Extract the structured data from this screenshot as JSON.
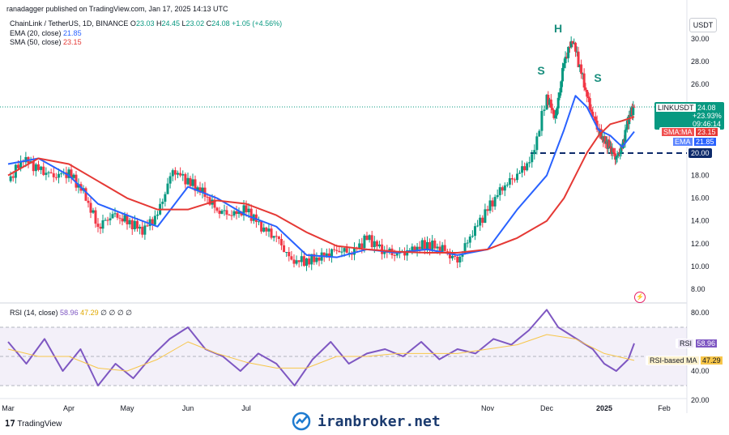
{
  "header": {
    "publisher": "ranadagger published on TradingView.com, Jan 17, 2025 14:13 UTC"
  },
  "instrument": {
    "title": "ChainLink / TetherUS, 1D, BINANCE",
    "open_label": "O",
    "open": "23.03",
    "high_label": "H",
    "high": "24.45",
    "low_label": "L",
    "low": "23.02",
    "close_label": "C",
    "close": "24.08",
    "change": "+1.05 (+4.56%)"
  },
  "indicators": {
    "ema": {
      "label": "EMA (20, close)",
      "value": "21.85",
      "color": "#2962ff"
    },
    "sma": {
      "label": "SMA (50, close)",
      "value": "23.15",
      "color": "#e53935"
    }
  },
  "rsi_legend": {
    "label": "RSI (14, close)",
    "rsi_value": "58.96",
    "ma_value": "47.29",
    "extras": "∅ ∅ ∅ ∅"
  },
  "currency": "USDT",
  "price_tag": {
    "symbol": "LINKUSDT",
    "price": "24.08",
    "change": "+23.93%",
    "countdown": "09:46:14",
    "color": "#089981"
  },
  "sma_tag": {
    "label": "SMA:MA",
    "value": "23.15"
  },
  "ema_tag": {
    "label": "EMA",
    "value": "21.85"
  },
  "support_tag": {
    "value": "20.00"
  },
  "rsi_tag": {
    "label": "RSI",
    "value": "58.96",
    "color": "#7e57c2"
  },
  "rsi_ma_tag": {
    "label": "RSI-based MA",
    "value": "47.29",
    "color": "#f7c64a"
  },
  "pattern": {
    "left": "S",
    "head": "H",
    "right": "S"
  },
  "brand": {
    "name": "TradingView",
    "watermark": "iranbroker.net"
  },
  "chart_data": {
    "type": "line",
    "title": "ChainLink / TetherUS, 1D, BINANCE",
    "price_axis": {
      "ticks": [
        "30.00",
        "28.00",
        "26.00",
        "24.00",
        "22.00",
        "20.00",
        "18.00",
        "16.00",
        "14.00",
        "12.00",
        "10.00",
        "8.00"
      ],
      "tick_values": [
        30,
        28,
        26,
        24,
        22,
        20,
        18,
        16,
        14,
        12,
        10,
        8
      ],
      "ylim": [
        7,
        31
      ]
    },
    "rsi_axis": {
      "ticks": [
        "80.00",
        "60.00",
        "40.00",
        "20.00"
      ],
      "tick_values": [
        80,
        60,
        40,
        20
      ],
      "ylim": [
        20,
        85
      ],
      "band": [
        30,
        70
      ]
    },
    "x_labels": [
      "Mar",
      "Apr",
      "May",
      "Jun",
      "Jul",
      "Nov",
      "Dec",
      "2025",
      "Feb"
    ],
    "x_label_months": [
      0,
      1,
      2,
      3,
      4,
      8,
      9,
      10,
      11
    ],
    "support_level": 20,
    "series": [
      {
        "name": "LINKUSDT",
        "kind": "candles",
        "x_months": [
          0,
          0.25,
          0.5,
          0.75,
          1,
          1.25,
          1.5,
          1.75,
          2,
          2.25,
          2.5,
          2.75,
          3,
          3.25,
          3.5,
          3.75,
          4,
          4.25,
          4.5,
          4.75,
          5,
          5.25,
          5.5,
          5.75,
          6,
          6.25,
          6.5,
          6.75,
          7,
          7.25,
          7.5,
          7.75,
          8,
          8.25,
          8.5,
          8.75,
          9,
          9.15,
          9.3,
          9.45,
          9.6,
          9.75,
          9.9,
          10,
          10.1,
          10.2,
          10.3,
          10.4,
          10.5
        ],
        "values": [
          17.5,
          19.5,
          18.5,
          18.0,
          18.2,
          16.5,
          13.5,
          14.5,
          14.0,
          13.2,
          14.5,
          18.5,
          17.5,
          16.5,
          15.0,
          14.5,
          15.0,
          13.5,
          12.5,
          10.5,
          10.5,
          10.8,
          11.5,
          11.2,
          12.5,
          11.5,
          11.0,
          11.5,
          12.0,
          11.5,
          10.5,
          13.0,
          15.0,
          17.0,
          18.0,
          19.5,
          25.0,
          23.0,
          28.0,
          30.0,
          27.0,
          24.0,
          22.0,
          21.0,
          20.5,
          19.5,
          20.5,
          23.0,
          24.08
        ]
      },
      {
        "name": "EMA (20, close)",
        "kind": "line",
        "x_months": [
          0,
          0.5,
          1,
          1.5,
          2,
          2.5,
          3,
          3.5,
          4,
          4.5,
          5,
          5.5,
          6,
          6.5,
          7,
          7.5,
          8,
          8.5,
          9,
          9.3,
          9.5,
          9.7,
          9.9,
          10.1,
          10.3,
          10.5
        ],
        "values": [
          19.0,
          19.5,
          18.0,
          15.5,
          14.5,
          13.5,
          17.0,
          16.0,
          14.5,
          13.5,
          11.0,
          10.8,
          11.5,
          11.2,
          11.5,
          11.0,
          11.5,
          15.0,
          18.0,
          22.0,
          25.0,
          24.0,
          22.0,
          21.5,
          20.5,
          21.85
        ]
      },
      {
        "name": "SMA (50, close)",
        "kind": "line",
        "x_months": [
          0,
          0.5,
          1,
          1.5,
          2,
          2.5,
          3,
          3.5,
          4,
          4.5,
          5,
          5.5,
          6,
          6.5,
          7,
          7.5,
          8,
          8.5,
          9,
          9.3,
          9.5,
          9.7,
          9.9,
          10.1,
          10.3,
          10.5
        ],
        "values": [
          18.0,
          19.5,
          19.0,
          17.5,
          16.0,
          15.0,
          15.0,
          15.8,
          15.5,
          14.5,
          13.0,
          11.8,
          11.5,
          11.3,
          11.2,
          11.2,
          11.5,
          12.5,
          14.0,
          16.0,
          18.0,
          20.0,
          21.5,
          22.5,
          22.8,
          23.15
        ]
      },
      {
        "name": "RSI (14, close)",
        "kind": "rsi",
        "x_months": [
          0,
          0.3,
          0.6,
          0.9,
          1.2,
          1.5,
          1.8,
          2.1,
          2.4,
          2.7,
          3.0,
          3.3,
          3.6,
          3.9,
          4.2,
          4.5,
          4.8,
          5.1,
          5.4,
          5.7,
          6.0,
          6.3,
          6.6,
          6.9,
          7.2,
          7.5,
          7.8,
          8.1,
          8.4,
          8.7,
          9.0,
          9.2,
          9.4,
          9.6,
          9.8,
          10.0,
          10.2,
          10.4,
          10.5
        ],
        "values": [
          60,
          45,
          62,
          40,
          55,
          30,
          45,
          35,
          50,
          62,
          70,
          55,
          50,
          40,
          52,
          45,
          30,
          48,
          60,
          45,
          52,
          55,
          50,
          60,
          48,
          55,
          52,
          62,
          58,
          68,
          82,
          70,
          65,
          60,
          55,
          45,
          40,
          48,
          58.96
        ]
      },
      {
        "name": "RSI-based MA",
        "kind": "rsi-ma",
        "x_months": [
          0,
          0.5,
          1,
          1.5,
          2,
          2.5,
          3,
          3.5,
          4,
          4.5,
          5,
          5.5,
          6,
          6.5,
          7,
          7.5,
          8,
          8.5,
          9,
          9.5,
          10,
          10.5
        ],
        "values": [
          55,
          50,
          50,
          42,
          40,
          48,
          60,
          52,
          46,
          42,
          42,
          50,
          50,
          52,
          52,
          52,
          55,
          58,
          65,
          62,
          52,
          47.29
        ]
      }
    ]
  }
}
